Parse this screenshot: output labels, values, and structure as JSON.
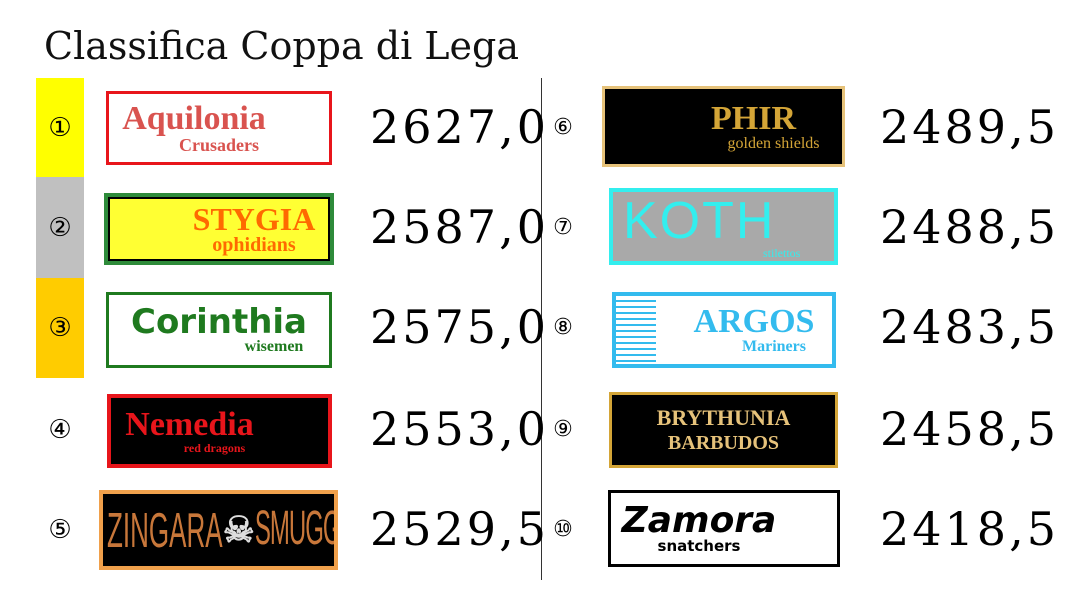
{
  "title": "Classifica Coppa di Lega",
  "podium_colors": [
    "#ffff00",
    "#c0c0c0",
    "#ffcc00"
  ],
  "teams": [
    {
      "rank": "①",
      "name": "Aquilonia",
      "subtitle": "Crusaders",
      "score": "2627,0",
      "border": "#e8151b",
      "bg": "#ffffff",
      "text": "#d9534f"
    },
    {
      "rank": "②",
      "name": "STYGIA",
      "subtitle": "ophidians",
      "score": "2587,0",
      "border": "#2e8b3a",
      "bg": "#ffff33",
      "text": "#ff6a00"
    },
    {
      "rank": "③",
      "name": "Corinthia",
      "subtitle": "wisemen",
      "score": "2575,0",
      "border": "#1f7a1f",
      "bg": "#ffffff",
      "text": "#1f7a1f"
    },
    {
      "rank": "④",
      "name": "Nemedia",
      "subtitle": "red dragons",
      "score": "2553,0",
      "border": "#e8151b",
      "bg": "#000000",
      "text": "#e8151b"
    },
    {
      "rank": "⑤",
      "name": "ZINGARA",
      "subtitle": "SMUGGLERS",
      "score": "2529,5",
      "border": "#f0a04b",
      "bg": "#000000",
      "text": "#c8773a"
    },
    {
      "rank": "⑥",
      "name": "PHIR",
      "subtitle": "golden shields",
      "score": "2489,5",
      "border": "#e6c27a",
      "bg": "#000000",
      "text": "#d4a537"
    },
    {
      "rank": "⑦",
      "name": "KOTH",
      "subtitle": "stilettos",
      "score": "2488,5",
      "border": "#33eeee",
      "bg": "#a9a9a9",
      "text": "#33eeee"
    },
    {
      "rank": "⑧",
      "name": "ARGOS",
      "subtitle": "Mariners",
      "score": "2483,5",
      "border": "#33bbee",
      "bg": "#ffffff",
      "text": "#33bbee"
    },
    {
      "rank": "⑨",
      "name": "BRYTHUNIA",
      "subtitle": "BARBUDOS",
      "score": "2458,5",
      "border": "#d4a537",
      "bg": "#000000",
      "text": "#e6c27a"
    },
    {
      "rank": "⑩",
      "name": "Zamora",
      "subtitle": "snatchers",
      "score": "2418,5",
      "border": "#000000",
      "bg": "#ffffff",
      "text": "#000000"
    }
  ]
}
